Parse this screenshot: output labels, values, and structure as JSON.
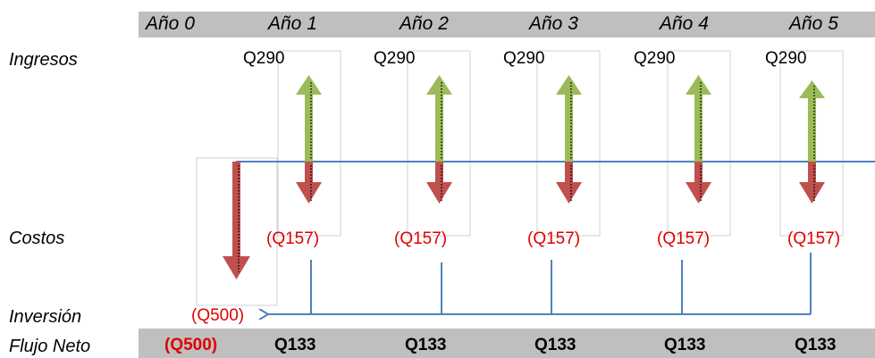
{
  "years": [
    "Año 0",
    "Año 1",
    "Año 2",
    "Año 3",
    "Año 4",
    "Año 5"
  ],
  "row_labels": {
    "ingresos": "Ingresos",
    "costos": "Costos",
    "inversion": "Inversión",
    "flujo_neto": "Flujo Neto"
  },
  "ingresos": [
    "Q290",
    "Q290",
    "Q290",
    "Q290",
    "Q290"
  ],
  "costos": [
    "(Q157)",
    "(Q157)",
    "(Q157)",
    "(Q157)",
    "(Q157)"
  ],
  "inversion": "(Q500)",
  "flujo_neto": [
    "(Q500)",
    "Q133",
    "Q133",
    "Q133",
    "Q133",
    "Q133"
  ],
  "colors": {
    "income_arrow": "#9bbb59",
    "cost_arrow": "#c0504d",
    "timeline": "#4f81bd",
    "negative_text": "#e00000",
    "band": "#bfbfbf"
  }
}
